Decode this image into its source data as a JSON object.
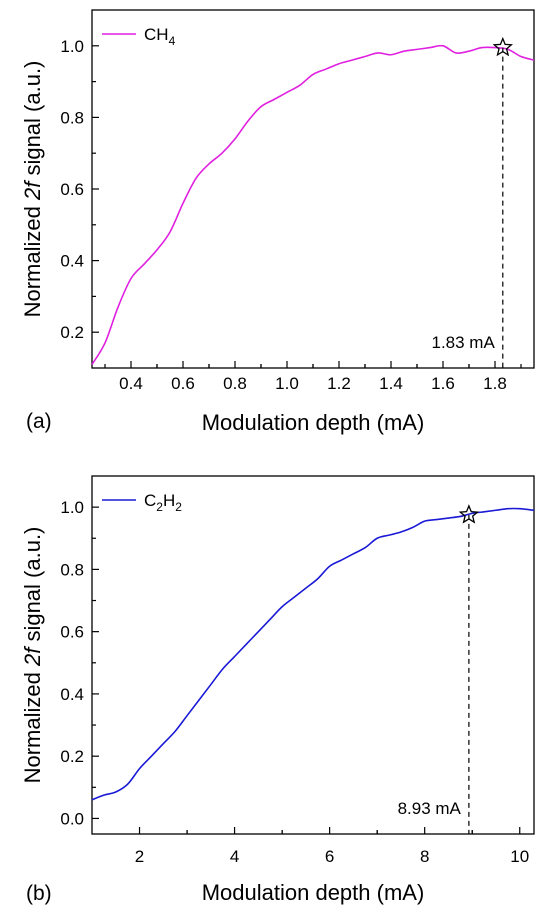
{
  "chart_data": [
    {
      "type": "line",
      "panel_label": "(a)",
      "xlabel": "Modulation depth (mA)",
      "ylabel": {
        "pre": "Normalized ",
        "italic": "2f",
        "post": " signal (a.u.)"
      },
      "xlim": [
        0.25,
        1.95
      ],
      "ylim": [
        0.1,
        1.1
      ],
      "xticks": [
        0.4,
        0.6,
        0.8,
        1.0,
        1.2,
        1.4,
        1.6,
        1.8
      ],
      "xtick_labels": [
        "0.4",
        "0.6",
        "0.8",
        "1.0",
        "1.2",
        "1.4",
        "1.6",
        "1.8"
      ],
      "yticks": [
        0.2,
        0.4,
        0.6,
        0.8,
        1.0
      ],
      "ytick_labels": [
        "0.2",
        "0.4",
        "0.6",
        "0.8",
        "1.0"
      ],
      "grid": false,
      "legend_position": "top-left",
      "series": [
        {
          "legend": {
            "base": "CH",
            "sub": "4",
            "tail": ""
          },
          "color": "#e020e0",
          "x": [
            0.25,
            0.3,
            0.35,
            0.4,
            0.45,
            0.5,
            0.55,
            0.6,
            0.65,
            0.7,
            0.75,
            0.8,
            0.85,
            0.9,
            0.95,
            1.0,
            1.05,
            1.1,
            1.15,
            1.2,
            1.25,
            1.3,
            1.35,
            1.4,
            1.45,
            1.5,
            1.55,
            1.6,
            1.65,
            1.7,
            1.75,
            1.8,
            1.85,
            1.9,
            1.95
          ],
          "y": [
            0.11,
            0.17,
            0.27,
            0.35,
            0.39,
            0.43,
            0.48,
            0.56,
            0.63,
            0.67,
            0.7,
            0.74,
            0.79,
            0.83,
            0.85,
            0.87,
            0.89,
            0.92,
            0.935,
            0.95,
            0.96,
            0.97,
            0.98,
            0.975,
            0.985,
            0.99,
            0.995,
            1.0,
            0.98,
            0.985,
            0.995,
            0.995,
            0.99,
            0.97,
            0.96
          ]
        }
      ],
      "marker": {
        "x": 1.83,
        "y": 0.995,
        "shape": "star"
      },
      "annotation": {
        "text": "1.83 mA",
        "x": 1.83
      }
    },
    {
      "type": "line",
      "panel_label": "(b)",
      "xlabel": "Modulation depth (mA)",
      "ylabel": {
        "pre": "Normalized ",
        "italic": "2f",
        "post": " signal (a.u.)"
      },
      "xlim": [
        1,
        10.3
      ],
      "ylim": [
        -0.05,
        1.1
      ],
      "xticks": [
        2,
        4,
        6,
        8,
        10
      ],
      "xtick_labels": [
        "2",
        "4",
        "6",
        "8",
        "10"
      ],
      "yticks": [
        0.0,
        0.2,
        0.4,
        0.6,
        0.8,
        1.0
      ],
      "ytick_labels": [
        "0.0",
        "0.2",
        "0.4",
        "0.6",
        "0.8",
        "1.0"
      ],
      "grid": false,
      "legend_position": "top-left",
      "series": [
        {
          "legend": {
            "base": "C",
            "sub": "2",
            "tail": "H",
            "sub2": "2"
          },
          "color": "#1a1ad6",
          "x": [
            1.0,
            1.25,
            1.5,
            1.75,
            2.0,
            2.25,
            2.5,
            2.75,
            3.0,
            3.25,
            3.5,
            3.75,
            4.0,
            4.25,
            4.5,
            4.75,
            5.0,
            5.25,
            5.5,
            5.75,
            6.0,
            6.25,
            6.5,
            6.75,
            7.0,
            7.25,
            7.5,
            7.75,
            8.0,
            8.25,
            8.5,
            8.75,
            9.0,
            9.25,
            9.5,
            9.75,
            10.0,
            10.3
          ],
          "y": [
            0.06,
            0.075,
            0.085,
            0.11,
            0.16,
            0.2,
            0.24,
            0.28,
            0.33,
            0.38,
            0.43,
            0.48,
            0.52,
            0.56,
            0.6,
            0.64,
            0.68,
            0.71,
            0.74,
            0.77,
            0.81,
            0.83,
            0.85,
            0.87,
            0.9,
            0.91,
            0.92,
            0.935,
            0.955,
            0.96,
            0.965,
            0.97,
            0.98,
            0.985,
            0.99,
            0.995,
            0.995,
            0.99
          ]
        }
      ],
      "marker": {
        "x": 8.93,
        "y": 0.975,
        "shape": "star"
      },
      "annotation": {
        "text": "8.93 mA",
        "x": 8.93
      }
    }
  ]
}
